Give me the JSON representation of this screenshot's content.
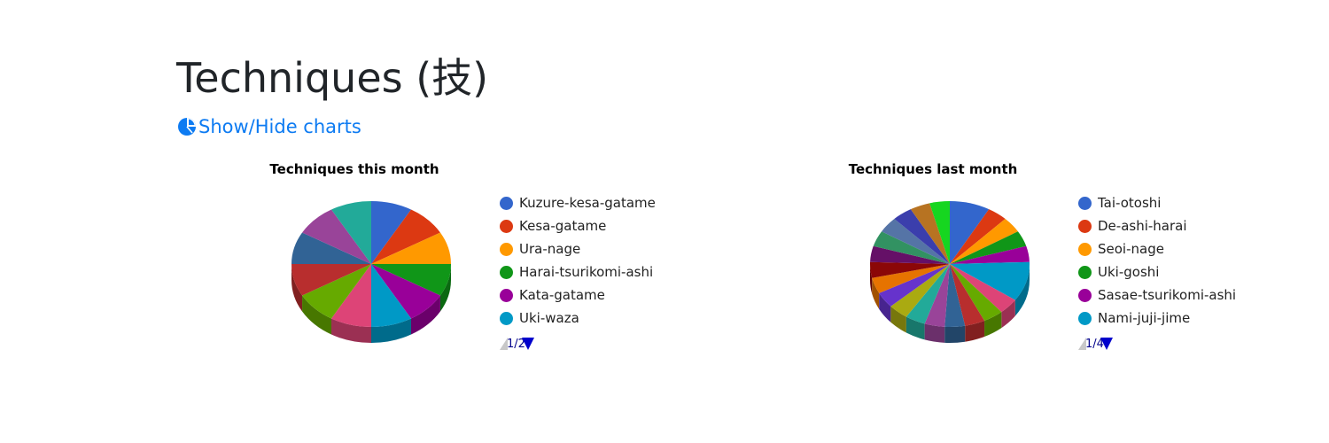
{
  "page": {
    "title": "Techniques (技)",
    "toggle_label": "Show/Hide charts"
  },
  "colors": {
    "link": "#0d7bf2",
    "pager_active": "#0000cc",
    "pager_inactive": "#c8c8c8"
  },
  "icons": {
    "toggle": "pie-chart-icon"
  },
  "chart_data": [
    {
      "type": "pie",
      "three_d": true,
      "title": "Techniques this month",
      "legend_position": "right",
      "labels": [
        "Kuzure-kesa-gatame",
        "Kesa-gatame",
        "Ura-nage",
        "Harai-tsurikomi-ashi",
        "Kata-gatame",
        "Uki-waza",
        "",
        "",
        "",
        "",
        "",
        ""
      ],
      "values": [
        1,
        1,
        1,
        1,
        1,
        1,
        1,
        1,
        1,
        1,
        1,
        1
      ],
      "colors": [
        "#3366cc",
        "#dc3912",
        "#ff9900",
        "#109618",
        "#990099",
        "#0099c6",
        "#dd4477",
        "#66aa00",
        "#b82e2e",
        "#316395",
        "#994499",
        "#22aa99"
      ],
      "legend_visible": [
        "Kuzure-kesa-gatame",
        "Kesa-gatame",
        "Ura-nage",
        "Harai-tsurikomi-ashi",
        "Kata-gatame",
        "Uki-waza"
      ],
      "legend_page": "1/2"
    },
    {
      "type": "pie",
      "three_d": true,
      "title": "Techniques last month",
      "legend_position": "right",
      "labels": [
        "Tai-otoshi",
        "De-ashi-harai",
        "Seoi-nage",
        "Uki-goshi",
        "Sasae-tsurikomi-ashi",
        "Nami-juji-jime",
        "",
        "",
        "",
        "",
        "",
        "",
        "",
        "",
        "",
        "",
        "",
        "",
        "",
        "",
        "",
        ""
      ],
      "values": [
        4,
        2,
        2,
        2,
        2,
        5,
        2,
        2,
        2,
        2,
        2,
        2,
        2,
        2,
        2,
        2,
        2,
        2,
        2,
        2,
        2,
        2
      ],
      "colors": [
        "#3366cc",
        "#dc3912",
        "#ff9900",
        "#109618",
        "#990099",
        "#0099c6",
        "#dd4477",
        "#66aa00",
        "#b82e2e",
        "#316395",
        "#994499",
        "#22aa99",
        "#aaaa11",
        "#6633cc",
        "#e67300",
        "#8b0707",
        "#651067",
        "#329262",
        "#5574a6",
        "#3b3eac",
        "#b77322",
        "#16d620"
      ],
      "legend_visible": [
        "Tai-otoshi",
        "De-ashi-harai",
        "Seoi-nage",
        "Uki-goshi",
        "Sasae-tsurikomi-ashi",
        "Nami-juji-jime"
      ],
      "legend_page": "1/4"
    }
  ]
}
